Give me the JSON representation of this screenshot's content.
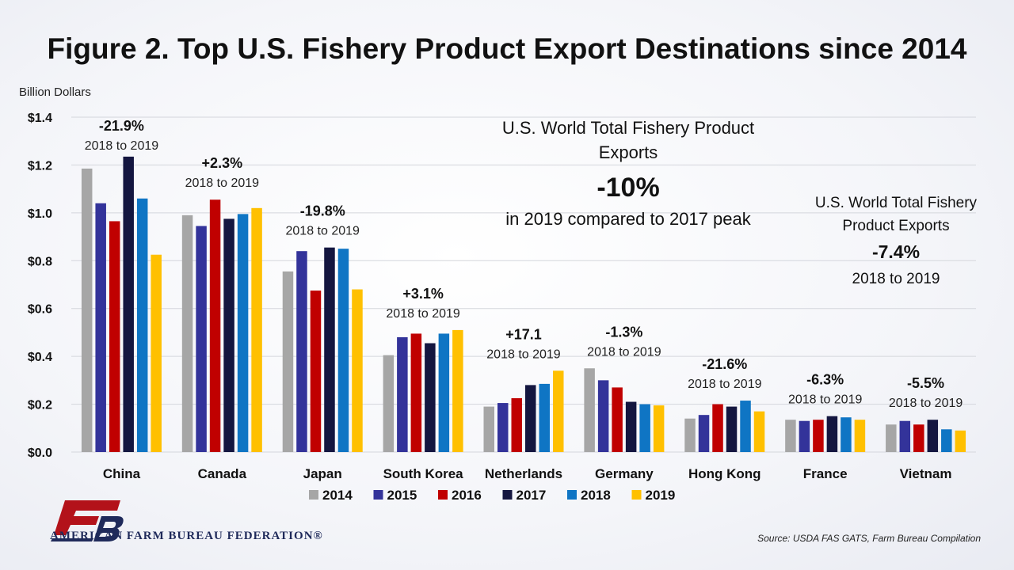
{
  "colors": {
    "2014": "#a6a6a6",
    "2015": "#33339a",
    "2016": "#c00000",
    "2017": "#141640",
    "2018": "#0f75c4",
    "2019": "#ffc000",
    "logo_red": "#b3121a",
    "logo_navy": "#1f2a5a"
  },
  "logo": {
    "org_name": "AMERICAN FARM BUREAU FEDERATION®"
  },
  "source_note": "Source:  USDA FAS GATS,  Farm Bureau Compilation",
  "callout_main": {
    "line1": "U.S. World Total Fishery Product",
    "line2": "Exports",
    "value": "-10%",
    "line3": "in 2019 compared to 2017 peak"
  },
  "callout_side": {
    "line1": "U.S. World Total Fishery",
    "line2": "Product Exports",
    "value": "-7.4%",
    "line3": "2018 to 2019"
  },
  "chart_data": {
    "type": "bar",
    "title": "Figure 2. Top U.S. Fishery Product Export Destinations since 2014",
    "ylabel": "Billion Dollars",
    "xlabel": "",
    "ylim": [
      0,
      1.4
    ],
    "ytick_values": [
      0,
      0.2,
      0.4,
      0.6,
      0.8,
      1.0,
      1.2,
      1.4
    ],
    "ytick_labels": [
      "$0.0",
      "$0.2",
      "$0.4",
      "$0.6",
      "$0.8",
      "$1.0",
      "$1.2",
      "$1.4"
    ],
    "grid": true,
    "legend_position": "bottom",
    "categories": [
      "China",
      "Canada",
      "Japan",
      "South Korea",
      "Netherlands",
      "Germany",
      "Hong Kong",
      "France",
      "Vietnam"
    ],
    "series": [
      {
        "name": "2014",
        "values": [
          1.185,
          0.99,
          0.755,
          0.405,
          0.19,
          0.35,
          0.14,
          0.135,
          0.115
        ]
      },
      {
        "name": "2015",
        "values": [
          1.04,
          0.945,
          0.84,
          0.48,
          0.205,
          0.3,
          0.155,
          0.13,
          0.13
        ]
      },
      {
        "name": "2016",
        "values": [
          0.965,
          1.055,
          0.675,
          0.495,
          0.225,
          0.27,
          0.2,
          0.135,
          0.115
        ]
      },
      {
        "name": "2017",
        "values": [
          1.235,
          0.975,
          0.855,
          0.455,
          0.28,
          0.21,
          0.19,
          0.15,
          0.135
        ]
      },
      {
        "name": "2018",
        "values": [
          1.06,
          0.995,
          0.85,
          0.495,
          0.285,
          0.2,
          0.215,
          0.145,
          0.095
        ]
      },
      {
        "name": "2019",
        "values": [
          0.825,
          1.02,
          0.68,
          0.51,
          0.34,
          0.195,
          0.17,
          0.135,
          0.09
        ]
      }
    ],
    "annotations": [
      {
        "category": "China",
        "change": "-21.9%",
        "period": "2018 to 2019"
      },
      {
        "category": "Canada",
        "change": "+2.3%",
        "period": "2018 to 2019"
      },
      {
        "category": "Japan",
        "change": "-19.8%",
        "period": "2018 to 2019"
      },
      {
        "category": "South Korea",
        "change": "+3.1%",
        "period": "2018 to 2019"
      },
      {
        "category": "Netherlands",
        "change": "+17.1",
        "period": "2018 to 2019"
      },
      {
        "category": "Germany",
        "change": "-1.3%",
        "period": "2018 to 2019"
      },
      {
        "category": "Hong Kong",
        "change": "-21.6%",
        "period": "2018 to 2019"
      },
      {
        "category": "France",
        "change": "-6.3%",
        "period": "2018 to 2019"
      },
      {
        "category": "Vietnam",
        "change": "-5.5%",
        "period": "2018 to 2019"
      }
    ]
  }
}
